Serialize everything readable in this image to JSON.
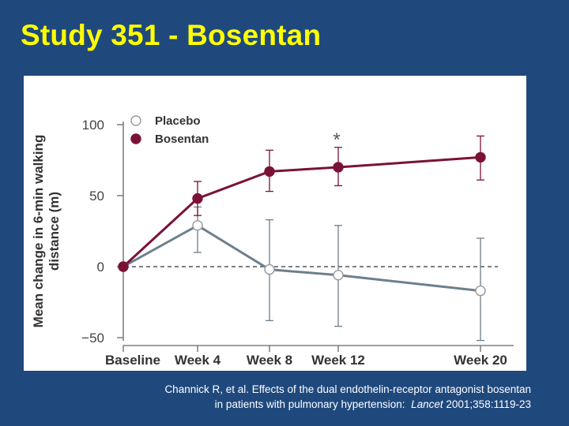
{
  "slide": {
    "title": "Study 351 - Bosentan",
    "citation": {
      "line1": "Channick R, et al. Effects of the dual endothelin-receptor antagonist bosentan",
      "line2_prefix": "in patients with pulmonary hypertension:",
      "line2_journal": "Lancet",
      "line2_ref": "2001;358:1119-23"
    }
  },
  "colors": {
    "background": "#1f497d",
    "title": "#ffff00",
    "placebo": "#6e7f8c",
    "bosentan": "#7a1238"
  },
  "chart_data": {
    "type": "line",
    "title": "",
    "xlabel": "",
    "ylabel_line1": "Mean change in 6-min walking",
    "ylabel_line2": "distance (m)",
    "categories": [
      "Baseline",
      "Week 4",
      "Week 8",
      "Week 12",
      "Week 20"
    ],
    "yticks": [
      100,
      50,
      0,
      -50
    ],
    "ytick_labels": [
      "100",
      "50",
      "0",
      "−50"
    ],
    "ylim": [
      -50,
      100
    ],
    "series": [
      {
        "name": "Placebo",
        "values": [
          0,
          29,
          -2,
          -6,
          -17
        ],
        "error_low": [
          0,
          10,
          -38,
          -42,
          -52
        ],
        "error_high": [
          0,
          42,
          33,
          29,
          20
        ]
      },
      {
        "name": "Bosentan",
        "values": [
          0,
          48,
          67,
          70,
          77
        ],
        "error_low": [
          0,
          36,
          53,
          57,
          61
        ],
        "error_high": [
          0,
          60,
          82,
          84,
          92
        ]
      }
    ],
    "annotations": [
      {
        "text": "*",
        "category": "Week 12"
      }
    ],
    "legend": [
      "Placebo",
      "Bosentan"
    ],
    "reference_line": 0
  }
}
